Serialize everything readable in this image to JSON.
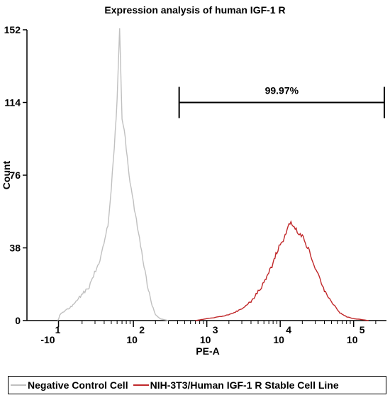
{
  "chart_data": {
    "type": "area",
    "title": "Expression analysis of human IGF-1 R",
    "xlabel": "PE-A",
    "ylabel": "Count",
    "x_scale": "log",
    "y_ticks": [
      "0",
      "38",
      "76",
      "114",
      "152"
    ],
    "y_tick_values": [
      0,
      38,
      76,
      114,
      152
    ],
    "ylim": [
      0,
      152
    ],
    "x_ticks": [
      {
        "base": "-10",
        "exp": "1",
        "value": -10
      },
      {
        "base": "10",
        "exp": "2",
        "value": 100
      },
      {
        "base": "10",
        "exp": "3",
        "value": 1000
      },
      {
        "base": "10",
        "exp": "4",
        "value": 10000
      },
      {
        "base": "10",
        "exp": "5",
        "value": 100000
      }
    ],
    "gate": {
      "label": "99.97%",
      "x_start": 420,
      "x_end": 262000,
      "y": 114
    },
    "series": [
      {
        "name": "Negative Control Cell",
        "color": "#c0c0c0",
        "x": [
          -10,
          2,
          8,
          15,
          25,
          35,
          45,
          50,
          55,
          60,
          65,
          70,
          75,
          80,
          85,
          90,
          100,
          110,
          125,
          140,
          160,
          180,
          200,
          230,
          260,
          300
        ],
        "y": [
          0,
          1,
          3,
          8,
          18,
          32,
          50,
          70,
          90,
          115,
          152,
          105,
          100,
          90,
          80,
          72,
          62,
          52,
          40,
          28,
          16,
          8,
          3,
          1,
          0.5,
          0
        ]
      },
      {
        "name": "NIH-3T3/Human IGF-1 R Stable Cell Line",
        "color": "#c0282a",
        "x": [
          700,
          1000,
          1500,
          2000,
          3000,
          4000,
          5000,
          6000,
          7000,
          8000,
          9000,
          10000,
          11000,
          12000,
          14000,
          16000,
          20000,
          25000,
          30000,
          40000,
          50000,
          65000,
          80000,
          100000,
          130000,
          160000
        ],
        "y": [
          0,
          1,
          2,
          3,
          6,
          10,
          15,
          20,
          25,
          30,
          36,
          40,
          42,
          46,
          52,
          48,
          44,
          36,
          28,
          16,
          10,
          4,
          2,
          1,
          0.5,
          0
        ]
      }
    ],
    "legend_position": "bottom"
  }
}
